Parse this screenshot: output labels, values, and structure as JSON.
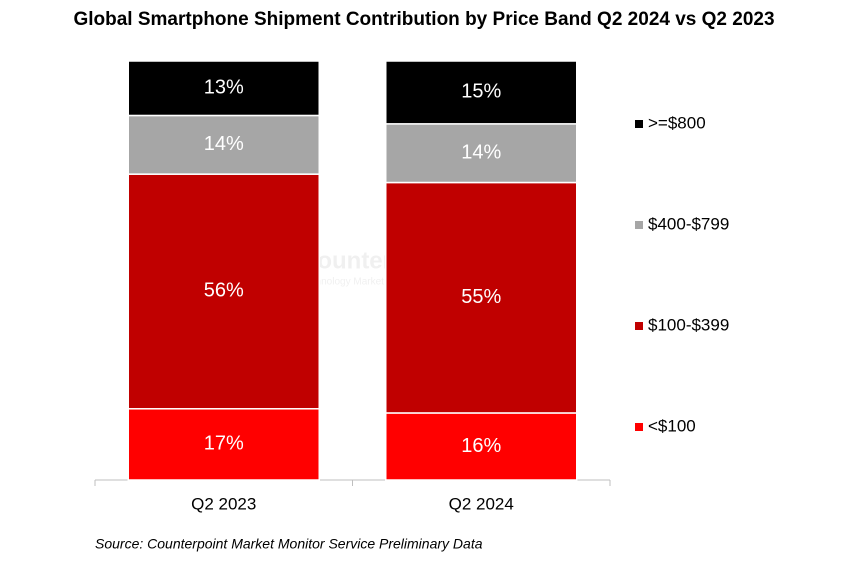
{
  "chart_data": {
    "type": "stacked_bar",
    "title": "Global Smartphone Shipment Contribution by Price Band Q2 2024 vs Q2 2023",
    "categories": [
      "Q2 2023",
      "Q2 2024"
    ],
    "series": [
      {
        "name": "<$100",
        "color": "#ff0000",
        "values": [
          17,
          16
        ],
        "value_labels": [
          "17%",
          "16%"
        ]
      },
      {
        "name": "$100-$399",
        "color": "#c00000",
        "values": [
          56,
          55
        ],
        "value_labels": [
          "56%",
          "55%"
        ]
      },
      {
        "name": "$400-$799",
        "color": "#a6a6a6",
        "values": [
          14,
          14
        ],
        "value_labels": [
          "14%",
          "14%"
        ]
      },
      {
        "name": ">=$800",
        "color": "#000000",
        "values": [
          13,
          15
        ],
        "value_labels": [
          "13%",
          "15%"
        ]
      }
    ],
    "ylim": [
      0,
      100
    ],
    "legend": "right",
    "watermark": [
      "Counterpoint",
      "Technology Market Insights"
    ],
    "source": "Source: Counterpoint Market Monitor Service Preliminary Data"
  }
}
